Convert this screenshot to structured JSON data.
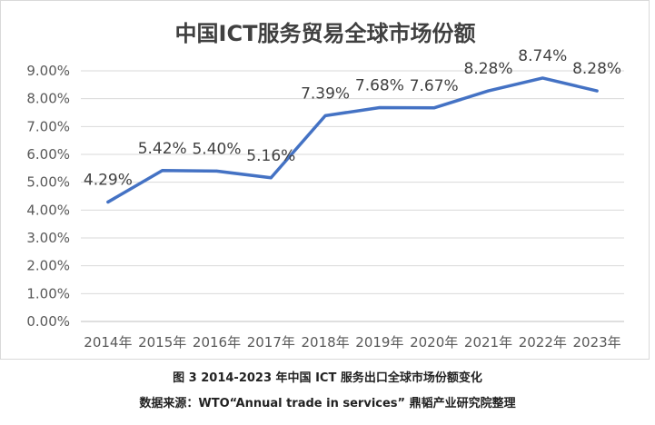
{
  "chart_data": {
    "type": "line",
    "title": "中国ICT服务贸易全球市场份额",
    "categories": [
      "2014年",
      "2015年",
      "2016年",
      "2017年",
      "2018年",
      "2019年",
      "2020年",
      "2021年",
      "2022年",
      "2023年"
    ],
    "series": [
      {
        "values": [
          4.29,
          5.42,
          5.4,
          5.16,
          7.39,
          7.68,
          7.67,
          8.28,
          8.74,
          8.28
        ],
        "data_labels": [
          "4.29%",
          "5.42%",
          "5.40%",
          "5.16%",
          "7.39%",
          "7.68%",
          "7.67%",
          "8.28%",
          "8.74%",
          "8.28%"
        ],
        "color": "#4472c4"
      }
    ],
    "ylim": [
      0,
      9
    ],
    "y_ticks": [
      "0.00%",
      "1.00%",
      "2.00%",
      "3.00%",
      "4.00%",
      "5.00%",
      "6.00%",
      "7.00%",
      "8.00%",
      "9.00%"
    ],
    "xlabel": "",
    "ylabel": "",
    "grid": true,
    "legend": "none"
  },
  "captions": {
    "figure": "图 3 2014-2023 年中国 ICT 服务出口全球市场份额变化",
    "source": "数据来源：WTO“Annual trade in services” 鼎韬产业研究院整理"
  }
}
